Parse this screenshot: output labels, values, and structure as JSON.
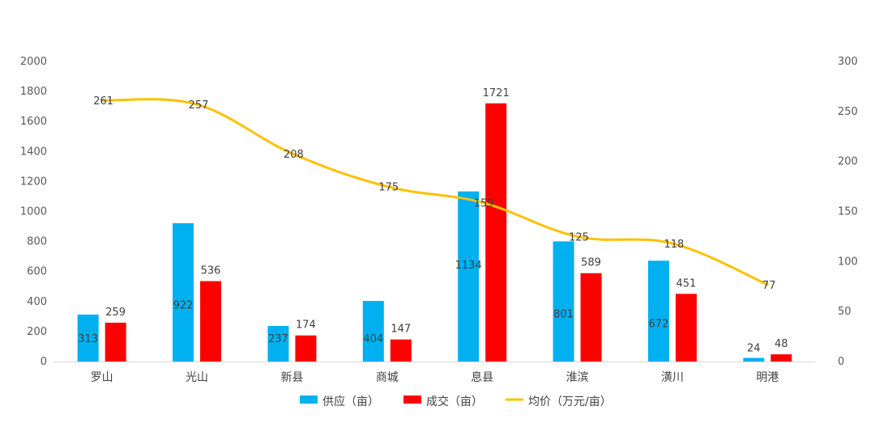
{
  "chart_data": {
    "type": "bar",
    "categories": [
      "罗山",
      "光山",
      "新县",
      "商城",
      "息县",
      "淮滨",
      "潢川",
      "明港"
    ],
    "series": [
      {
        "name": "供应（亩）",
        "kind": "bar",
        "axis": "left",
        "color": "#00B0F0",
        "values": [
          313,
          922,
          237,
          404,
          1134,
          801,
          672,
          24
        ]
      },
      {
        "name": "成交（亩）",
        "kind": "bar",
        "axis": "left",
        "color": "#FF0000",
        "values": [
          259,
          536,
          174,
          147,
          1721,
          589,
          451,
          48
        ]
      },
      {
        "name": "均价（万元/亩）",
        "kind": "line",
        "axis": "right",
        "color": "#FFC000",
        "values": [
          261,
          257,
          208,
          175,
          159,
          125,
          118,
          77
        ]
      }
    ],
    "y_left": {
      "min": 0,
      "max": 2000,
      "step": 200
    },
    "y_right": {
      "min": 0,
      "max": 300,
      "step": 50
    },
    "grid": false,
    "legend_position": "bottom"
  }
}
